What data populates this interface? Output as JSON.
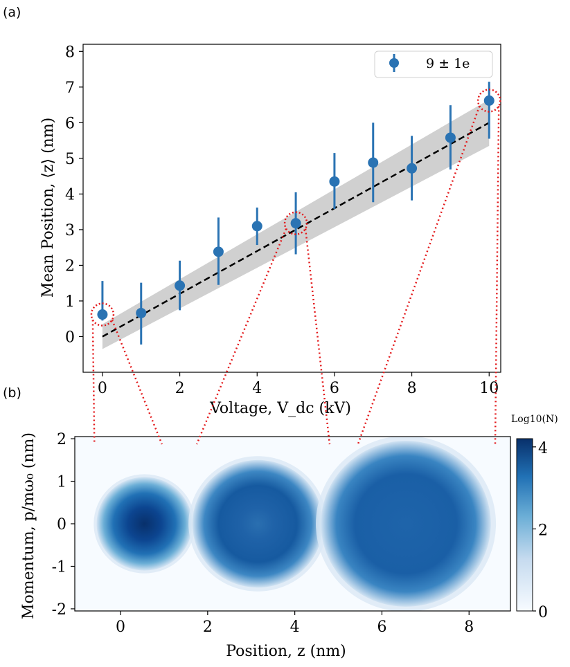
{
  "panel_labels": {
    "a": "(a)",
    "b": "(b)"
  },
  "colors": {
    "series": "#2a73b3",
    "fit": "#000000",
    "band": "#c8c8c8",
    "highlight": "#e31a1c"
  },
  "chart_data": [
    {
      "type": "scatter",
      "panel": "(a)",
      "title": "",
      "xlabel": "Voltage, V_dc (kV)",
      "ylabel": "Mean Position, ⟨z⟩ (nm)",
      "xlim": [
        -0.5,
        10.3
      ],
      "ylim": [
        -1.0,
        8.2
      ],
      "xticks": [
        0,
        2,
        4,
        6,
        8,
        10
      ],
      "yticks": [
        0,
        1,
        2,
        3,
        4,
        5,
        6,
        7,
        8
      ],
      "legend": {
        "label": "9 ± 1e",
        "placement": "top-right"
      },
      "series": [
        {
          "name": "9 ± 1e",
          "x": [
            0,
            1,
            2,
            3,
            4,
            5,
            6,
            7,
            8,
            9,
            10
          ],
          "y": [
            0.62,
            0.66,
            1.43,
            2.38,
            3.1,
            3.18,
            4.35,
            4.88,
            4.72,
            5.58,
            6.62
          ],
          "yerr_low": [
            0.45,
            -0.22,
            0.74,
            1.45,
            2.57,
            2.31,
            3.58,
            3.77,
            3.82,
            4.69,
            5.55
          ],
          "yerr_high": [
            1.56,
            1.51,
            2.13,
            3.34,
            3.62,
            4.05,
            5.15,
            6.0,
            5.63,
            6.49,
            7.15
          ]
        }
      ],
      "fit_line": {
        "x": [
          0,
          10
        ],
        "y": [
          0.0,
          6.0
        ],
        "style": "dashed"
      },
      "confidence_band": {
        "x": [
          0,
          10
        ],
        "lower": [
          -0.35,
          5.35
        ],
        "upper": [
          0.35,
          6.65
        ]
      },
      "highlighted_points": [
        0,
        5,
        10
      ]
    },
    {
      "type": "heatmap",
      "panel": "(b)",
      "title": "",
      "xlabel": "Position, z (nm)",
      "ylabel": "Momentum, p/mω₀ (nm)",
      "xlim": [
        -1.05,
        8.95
      ],
      "ylim": [
        -2.05,
        2.05
      ],
      "xticks": [
        0,
        2,
        4,
        6,
        8
      ],
      "yticks": [
        -2,
        -1,
        0,
        1,
        2
      ],
      "ytick_labels": [
        "-2",
        "-1",
        "0",
        "1",
        "2"
      ],
      "colorbar": {
        "label": "Log10(N)",
        "min": 0,
        "max": 4.2,
        "ticks": [
          0,
          2,
          4
        ]
      },
      "blobs": [
        {
          "center_z": 0.55,
          "center_p": 0.0,
          "radius": 1.1,
          "peak_log10N": 4.2
        },
        {
          "center_z": 3.15,
          "center_p": 0.0,
          "radius": 1.5,
          "peak_log10N": 3.2
        },
        {
          "center_z": 6.55,
          "center_p": 0.0,
          "radius": 1.95,
          "peak_log10N": 3.35
        }
      ]
    }
  ]
}
